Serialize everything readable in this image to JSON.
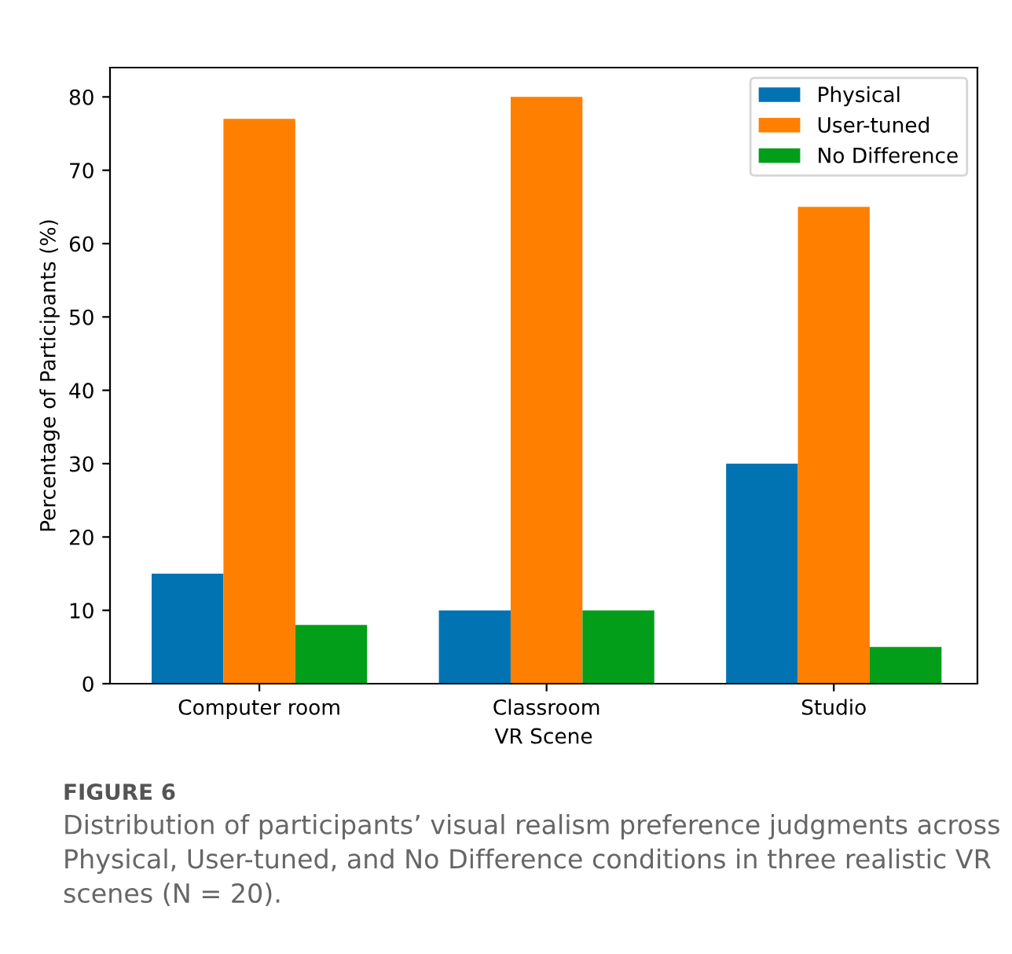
{
  "chart_data": {
    "type": "bar",
    "xlabel": "VR Scene",
    "ylabel": "Percentage of Participants (%)",
    "categories": [
      "Computer room",
      "Classroom",
      "Studio"
    ],
    "series": [
      {
        "name": "Physical",
        "color": "#0173b2",
        "values": [
          15,
          10,
          30
        ]
      },
      {
        "name": "User-tuned",
        "color": "#ff7f00",
        "values": [
          77,
          80,
          65
        ]
      },
      {
        "name": "No Difference",
        "color": "#029e1a",
        "values": [
          8,
          10,
          5
        ]
      }
    ],
    "ylim": [
      0,
      84
    ],
    "yticks": [
      0,
      10,
      20,
      30,
      40,
      50,
      60,
      70,
      80
    ],
    "grid": false,
    "legend": "top right",
    "annotations": [
      "FIGURE 6",
      "Distribution of participants’ visual realism preference judgments across Physical, User-tuned, and No Difference conditions in three realistic VR scenes (N = 20)."
    ]
  }
}
